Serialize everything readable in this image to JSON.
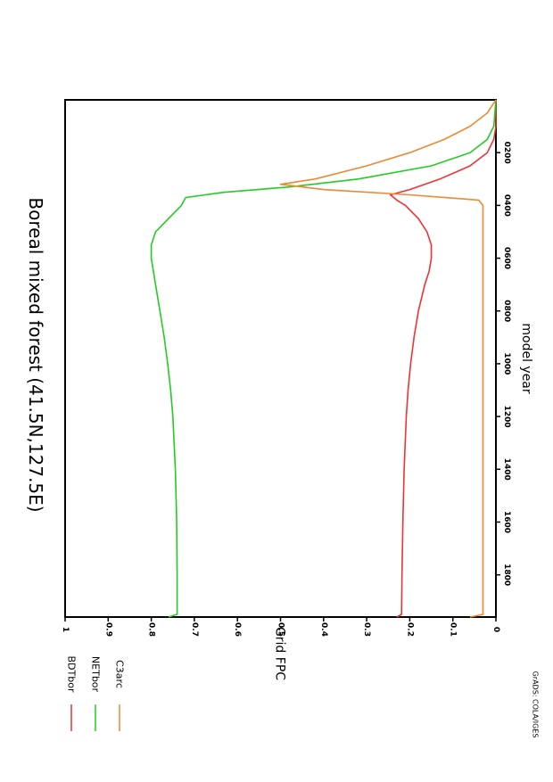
{
  "chart_data": {
    "type": "line",
    "orientation": "rotated-90-clockwise",
    "title": "Boreal mixed forest (41.5N,127.5E)",
    "xlabel": "model year",
    "ylabel": "Grid FPC",
    "xlim": [
      0,
      1960
    ],
    "ylim": [
      0,
      1
    ],
    "x_ticks": [
      200,
      400,
      600,
      800,
      1000,
      1200,
      1400,
      1600,
      1800
    ],
    "x_tick_labels": [
      "0200",
      "0400",
      "0600",
      "0800",
      "1000",
      "1200",
      "1400",
      "1600",
      "1800"
    ],
    "y_ticks": [
      0,
      0.1,
      0.2,
      0.3,
      0.4,
      0.5,
      0.6,
      0.7,
      0.8,
      0.9,
      1
    ],
    "y_tick_labels": [
      "0",
      "0.1",
      "0.2",
      "0.3",
      "0.4",
      "0.5",
      "0.6",
      "0.7",
      "0.8",
      "0.9",
      "1"
    ],
    "grid": false,
    "legend_position": "outside-left",
    "credit": "GrADS: COLA/IGES",
    "series": [
      {
        "name": "BDTbor",
        "color": "#ee3333",
        "x": [
          0,
          100,
          150,
          200,
          250,
          300,
          340,
          360,
          380,
          400,
          450,
          500,
          550,
          600,
          650,
          700,
          800,
          900,
          1000,
          1100,
          1200,
          1400,
          1600,
          1800,
          1950,
          1960
        ],
        "y": [
          0,
          0.0,
          0.005,
          0.02,
          0.06,
          0.13,
          0.2,
          0.245,
          0.23,
          0.21,
          0.18,
          0.16,
          0.15,
          0.15,
          0.155,
          0.165,
          0.18,
          0.19,
          0.198,
          0.204,
          0.208,
          0.213,
          0.216,
          0.218,
          0.219,
          0.23
        ]
      },
      {
        "name": "NETbor",
        "color": "#22cc22",
        "x": [
          0,
          100,
          150,
          200,
          250,
          300,
          330,
          350,
          370,
          400,
          450,
          500,
          550,
          600,
          650,
          700,
          800,
          900,
          1000,
          1100,
          1200,
          1400,
          1600,
          1800,
          1950,
          1960
        ],
        "y": [
          0,
          0.005,
          0.02,
          0.06,
          0.15,
          0.32,
          0.48,
          0.63,
          0.72,
          0.73,
          0.76,
          0.79,
          0.8,
          0.8,
          0.795,
          0.79,
          0.78,
          0.77,
          0.762,
          0.755,
          0.75,
          0.744,
          0.741,
          0.74,
          0.74,
          0.76
        ]
      },
      {
        "name": "C3arc",
        "color": "#ee8833",
        "x": [
          0,
          50,
          100,
          150,
          200,
          250,
          300,
          320,
          340,
          360,
          380,
          400,
          500,
          800,
          1200,
          1600,
          1950,
          1960
        ],
        "y": [
          0,
          0.02,
          0.06,
          0.12,
          0.2,
          0.3,
          0.42,
          0.5,
          0.4,
          0.2,
          0.04,
          0.03,
          0.03,
          0.03,
          0.03,
          0.03,
          0.03,
          0.06
        ]
      }
    ]
  }
}
